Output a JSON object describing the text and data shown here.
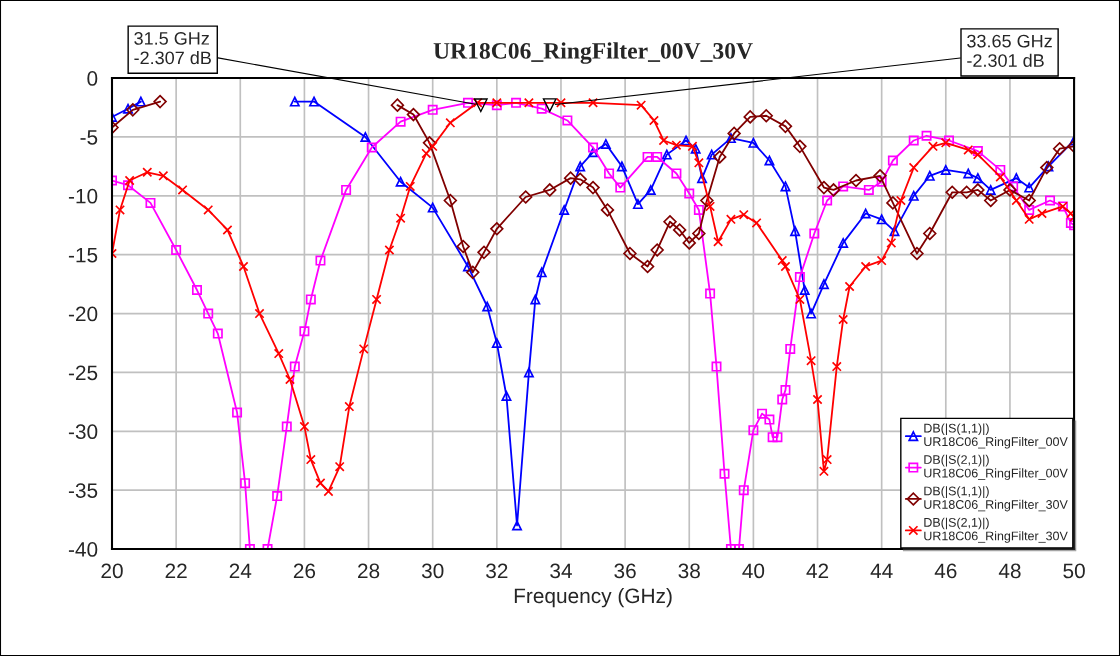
{
  "chart_data": {
    "type": "line",
    "title": "UR18C06_RingFilter_00V_30V",
    "xlabel": "Frequency (GHz)",
    "xlim": [
      20,
      50
    ],
    "xticks": [
      20,
      22,
      24,
      26,
      28,
      30,
      32,
      34,
      36,
      38,
      40,
      42,
      44,
      46,
      48,
      50
    ],
    "ylim": [
      -40,
      0
    ],
    "yticks": [
      0,
      -5,
      -10,
      -15,
      -20,
      -25,
      -30,
      -35,
      -40
    ],
    "grid": true,
    "legend": "bottom right",
    "annotations": [
      {
        "text": "31.5 GHz\n-2.307 dB",
        "x": 31.5,
        "y": -2.307
      },
      {
        "text": "33.65 GHz\n-2.301 dB",
        "x": 33.65,
        "y": -2.301
      }
    ],
    "series": [
      {
        "name": "DB(|S(1,1)|)\nUR18C06_RingFilter_00V",
        "color": "#0000ff",
        "marker": "triangle",
        "x": [
          20,
          20.5,
          20.9,
          23,
          25.7,
          26.3,
          27.9,
          29,
          30,
          31.1,
          31.7,
          32,
          32.3,
          32.63,
          33,
          33.2,
          33.4,
          34.1,
          34.6,
          35,
          35.4,
          35.9,
          36.4,
          36.8,
          37.3,
          37.9,
          38.2,
          38.4,
          38.7,
          39.3,
          40,
          40.5,
          41,
          41.3,
          41.6,
          41.8,
          42.2,
          42.8,
          43.5,
          44,
          44.4,
          45,
          45.5,
          46,
          46.7,
          47,
          47.4,
          48.2,
          48.6,
          49.2,
          50
        ],
        "values": [
          -3.3,
          -2.6,
          -2,
          null,
          -2,
          -2,
          -5,
          -8.8,
          -11,
          -16,
          -19.4,
          -22.5,
          -27,
          -38,
          -25,
          -18.8,
          -16.5,
          -11.2,
          -7.5,
          -6.3,
          -5.6,
          -7.5,
          -10.7,
          -9.5,
          -6.5,
          -5.3,
          -6,
          -8.5,
          -6.5,
          -5.1,
          -5.5,
          -7,
          -9.2,
          -13,
          -18,
          -20,
          -17.5,
          -14,
          -11.5,
          -12,
          -13,
          -10,
          -8.3,
          -7.8,
          -8.1,
          -8.5,
          -9.5,
          -8.5,
          -9.3,
          -7.5,
          -5.3
        ]
      },
      {
        "name": "DB(|S(2,1)|)\nUR18C06_RingFilter_00V",
        "color": "#ff00ff",
        "marker": "square",
        "x": [
          20,
          20.5,
          21.2,
          22,
          22.65,
          23,
          23.3,
          23.9,
          24.15,
          24.3,
          24.6,
          24.85,
          25.15,
          25.45,
          25.7,
          26,
          26.2,
          26.5,
          27.3,
          28.1,
          29,
          30,
          31.1,
          32,
          32.6,
          33.4,
          34.2,
          35,
          35.5,
          35.85,
          36.7,
          37,
          37.6,
          38,
          38.3,
          38.65,
          38.85,
          39.1,
          39.3,
          39.45,
          39.55,
          39.7,
          40,
          40.27,
          40.5,
          40.6,
          40.75,
          40.9,
          41,
          41.15,
          41.45,
          41.9,
          42.3,
          42.8,
          43.6,
          44,
          44.35,
          45,
          45.4,
          46.1,
          47,
          47.7,
          48.1,
          48.6,
          49.25,
          49.65,
          49.9,
          50
        ],
        "values": [
          -8.7,
          -9.1,
          -10.6,
          -14.6,
          -18,
          -20,
          -21.7,
          -28.4,
          -34.4,
          -40,
          null,
          -40,
          -35.5,
          -29.6,
          -24.5,
          -21.5,
          -18.8,
          -15.5,
          -9.5,
          -5.9,
          -3.7,
          -2.7,
          -2.1,
          -2.3,
          -2.1,
          -2.6,
          -3.6,
          -5.9,
          -8.1,
          -9.3,
          -6.7,
          -6.7,
          -8.1,
          -9.8,
          -11.2,
          -18.3,
          -24.5,
          -33.6,
          -40,
          null,
          -40,
          -35,
          -29.9,
          -28.5,
          -29,
          -30.5,
          -30.5,
          -27.3,
          -26.5,
          -23,
          -16.9,
          -13.2,
          -10.4,
          -9.2,
          -9.5,
          -8.8,
          -7,
          -5.3,
          -4.9,
          -5.3,
          -6.2,
          -7.8,
          -9.2,
          -11.2,
          -10.4,
          -10.9,
          -12.3,
          -12.5
        ]
      },
      {
        "name": "DB(|S(1,1)|)\nUR18C06_RingFilter_30V",
        "color": "#800000",
        "marker": "diamond",
        "x": [
          20,
          20.65,
          21.5,
          25,
          28.9,
          29.4,
          29.9,
          30.55,
          30.95,
          31.25,
          31.6,
          32,
          32.9,
          33.65,
          34.3,
          34.6,
          35,
          35.45,
          36.15,
          36.7,
          37,
          37.4,
          37.7,
          38,
          38.3,
          38.55,
          38.95,
          39.4,
          39.9,
          40.4,
          41,
          41.45,
          42.2,
          42.5,
          43.2,
          43.95,
          44.35,
          45.1,
          45.5,
          46.2,
          46.65,
          47,
          47.4,
          48,
          48.6,
          49.15,
          49.55,
          50
        ],
        "values": [
          -4.2,
          -2.7,
          -2,
          null,
          -2.3,
          -3.1,
          -5.5,
          -10.4,
          -14.3,
          -16.5,
          -14.8,
          -12.8,
          -10.1,
          -9.5,
          -8.5,
          -8.6,
          -9.3,
          -11.2,
          -14.9,
          -16,
          -14.6,
          -12.2,
          -12.9,
          -14,
          -13.2,
          -10.4,
          -6.7,
          -4.7,
          -3.3,
          -3.2,
          -4.1,
          -5.8,
          -9.3,
          -9.5,
          -8.7,
          -8.3,
          -10.6,
          -14.9,
          -13.2,
          -9.7,
          -9.7,
          -9.5,
          -10.4,
          -9.5,
          -10.4,
          -7.6,
          -6,
          -5.8
        ]
      },
      {
        "name": "DB(|S(2,1)|)\nUR18C06_RingFilter_30V",
        "color": "#ff0000",
        "marker": "cross",
        "x": [
          20,
          20.25,
          20.55,
          21.1,
          21.6,
          22.2,
          23,
          23.6,
          24.1,
          24.6,
          25.2,
          25.55,
          26,
          26.2,
          26.5,
          26.75,
          27.1,
          27.4,
          27.85,
          28.25,
          28.65,
          29,
          29.3,
          29.8,
          30,
          30.55,
          31.4,
          32,
          33,
          34,
          35,
          36.5,
          36.9,
          37.2,
          37.6,
          38.1,
          38.3,
          38.65,
          38.9,
          39.3,
          39.7,
          40.1,
          40.9,
          41,
          41.45,
          41.8,
          42,
          42.2,
          42.3,
          42.6,
          42.8,
          43,
          43.5,
          44,
          44.3,
          44.6,
          45,
          45.6,
          46,
          46.7,
          47,
          47.7,
          48.2,
          48.6,
          49,
          49.65,
          49.9,
          50
        ],
        "values": [
          -14.9,
          -11.2,
          -8.7,
          -8,
          -8.3,
          -9.5,
          -11.2,
          -12.9,
          -16,
          -20,
          -23.4,
          -25.6,
          -29.6,
          -32.4,
          -34.4,
          -35.1,
          -33,
          -27.9,
          -23,
          -18.8,
          -14.6,
          -11.9,
          -9.2,
          -6.4,
          -5.8,
          -3.8,
          -2.1,
          -2.1,
          -2.1,
          -2.1,
          -2.1,
          -2.3,
          -3.6,
          -5.3,
          -5.7,
          -5.8,
          -7.2,
          -10.9,
          -13.9,
          -12,
          -11.6,
          -12.3,
          -15.5,
          -16,
          -18.8,
          -24,
          -27.3,
          -33.4,
          -32.4,
          -24.5,
          -20.5,
          -17.7,
          -16,
          -15.5,
          -14,
          -10.4,
          -7.6,
          -5.8,
          -5.5,
          -6.1,
          -6.5,
          -8.4,
          -10.4,
          -12,
          -11.5,
          -10.9,
          -11.5,
          -11.8
        ]
      }
    ]
  }
}
